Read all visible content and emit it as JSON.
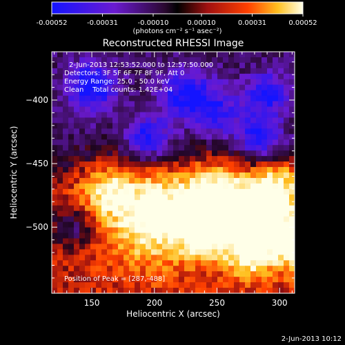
{
  "chart_data": {
    "type": "heatmap",
    "title": "Reconstructed RHESSI Image",
    "xlabel": "Heliocentric X (arcsec)",
    "ylabel": "Heliocentric Y (arcsec)",
    "xlim": [
      118,
      312
    ],
    "ylim": [
      -552,
      -362
    ],
    "xticks": [
      150,
      200,
      250,
      300
    ],
    "yticks": [
      -400,
      -450,
      -500
    ],
    "colorbar": {
      "range": [
        -0.00052,
        0.00052
      ],
      "ticks": [
        "-0.00052",
        "-0.00031",
        "-0.00010",
        "0.00010",
        "0.00031",
        "0.00052"
      ],
      "tick_values": [
        -0.00052,
        -0.00031,
        -0.0001,
        0.0001,
        0.00031,
        0.00052
      ],
      "unit_label": "(photons cm⁻² s⁻¹ asec⁻²)"
    },
    "annotations": {
      "time_range": "2-Jun-2013 12:53:52.000 to 12:57:50.000",
      "detectors": "Detectors: 3F 5F 6F 7F 8F 9F, Att 0",
      "energy": "Energy Range: 25.0 - 50.0 keV",
      "clean": "Clean    Total counts: 1.42E+04",
      "peak": "Position of Peak = [287,-488]"
    },
    "peak": [
      287,
      -488
    ],
    "grid": false,
    "colors": {
      "negative": "#1a1aff",
      "zero": "#3a0a4a",
      "positive": "#ffffe0",
      "background": "#000000"
    }
  },
  "footer": {
    "timestamp": "2-Jun-2013 10:12"
  }
}
